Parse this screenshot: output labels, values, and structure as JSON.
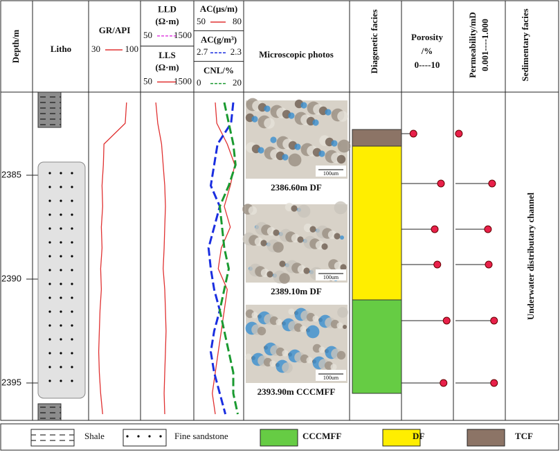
{
  "depth_axis": {
    "title": "Depth/m",
    "ylim": [
      2381,
      2396.8
    ],
    "yticks": [
      2385,
      2390,
      2395
    ]
  },
  "litho": {
    "title": "Litho",
    "legend": [
      {
        "name": "Shale",
        "intervals": [
          [
            2381,
            2382.7
          ],
          [
            2396,
            2396.8
          ]
        ]
      },
      {
        "name": "Fine sandstone",
        "intervals": [
          [
            2382.7,
            2396
          ]
        ]
      }
    ]
  },
  "logs": {
    "depths": [
      2381.5,
      2382.5,
      2383.5,
      2384.5,
      2385.5,
      2386.5,
      2387.5,
      2388.5,
      2389.5,
      2390.5,
      2391.5,
      2392.5,
      2393.5,
      2394.5,
      2395.5,
      2396.5
    ],
    "tracks": [
      {
        "curves": [
          {
            "label": "GR/API",
            "xlim": [
              30,
              100
            ],
            "color": "#e03030",
            "values": [
              82,
              80,
              48,
              47,
              45,
              46,
              44,
              45,
              43,
              44,
              42,
              41,
              40,
              41,
              43,
              46
            ]
          }
        ]
      },
      {
        "curves": [
          {
            "label": "LLD",
            "unit": "(Ω·m)",
            "xlim": [
              50,
              1500
            ],
            "color": "#e040e0",
            "dashed": true
          },
          {
            "label": "LLS",
            "unit": "(Ω·m)",
            "xlim": [
              50,
              1500
            ],
            "color": "#e03030",
            "values": [
              420,
              480,
              600,
              650,
              700,
              720,
              700,
              680,
              650,
              700,
              720,
              740,
              720,
              700,
              680,
              700
            ]
          }
        ]
      },
      {
        "curves": [
          {
            "label": "AC(µs/m)",
            "xlim": [
              50,
              80
            ],
            "color": "#e03030",
            "values": [
              62,
              63,
              70,
              75,
              72,
              68,
              72,
              66,
              64,
              70,
              68,
              66,
              64,
              62,
              60,
              62
            ]
          },
          {
            "label": "AC(g/m³)",
            "xlim": [
              2.7,
              2.3
            ],
            "color": "#1a2ee0",
            "dashed": true,
            "values": [
              2.38,
              2.4,
              2.52,
              2.55,
              2.58,
              2.5,
              2.55,
              2.6,
              2.58,
              2.55,
              2.5,
              2.55,
              2.58,
              2.55,
              2.5,
              2.45
            ]
          },
          {
            "label": "CNL/%",
            "xlim": [
              0,
              20
            ],
            "color": "#1a9a30",
            "dashed": true,
            "values": [
              12,
              14,
              16,
              17,
              14,
              10,
              11,
              12,
              14,
              12,
              10,
              12,
              14,
              16,
              16,
              18
            ]
          }
        ]
      }
    ]
  },
  "photos": {
    "title": "Microscopic photos",
    "items": [
      {
        "caption": "2386.60m DF",
        "scale_bar": "100um"
      },
      {
        "caption": "2389.10m DF",
        "scale_bar": "100um"
      },
      {
        "caption": "2393.90m CCCMFF",
        "scale_bar": "100um"
      }
    ]
  },
  "facies": {
    "title": "Diagenetic facies",
    "legend": [
      {
        "name": "CCCMFF",
        "color": "#66cc44",
        "intervals": [
          [
            2391.0,
            2395.5
          ]
        ]
      },
      {
        "name": "DF",
        "color": "#ffee00",
        "intervals": [
          [
            2383.6,
            2391.0
          ]
        ]
      },
      {
        "name": "TCF",
        "color": "#8c7466",
        "intervals": [
          [
            2382.8,
            2383.6
          ]
        ]
      }
    ]
  },
  "porosity": {
    "title": "Porosity",
    "unit": "/%",
    "scale_label": "0----10",
    "xlim": [
      0,
      10
    ],
    "depths": [
      2383.0,
      2385.4,
      2387.6,
      2389.3,
      2392.0,
      2395.0
    ],
    "values": [
      2.3,
      7.6,
      6.4,
      6.9,
      8.7,
      8.1
    ]
  },
  "permeability": {
    "title": "Permeability/mD",
    "scale_label": "0.001----1.000",
    "xlim": [
      0.001,
      1
    ],
    "log": true,
    "depths": [
      2383.0,
      2385.4,
      2387.6,
      2389.3,
      2392.0,
      2395.0
    ],
    "values": [
      0.0016,
      0.16,
      0.09,
      0.1,
      0.21,
      0.21
    ]
  },
  "sedimentary": {
    "title": "Sedimentary facies",
    "label": "Underwater distributary channel"
  }
}
